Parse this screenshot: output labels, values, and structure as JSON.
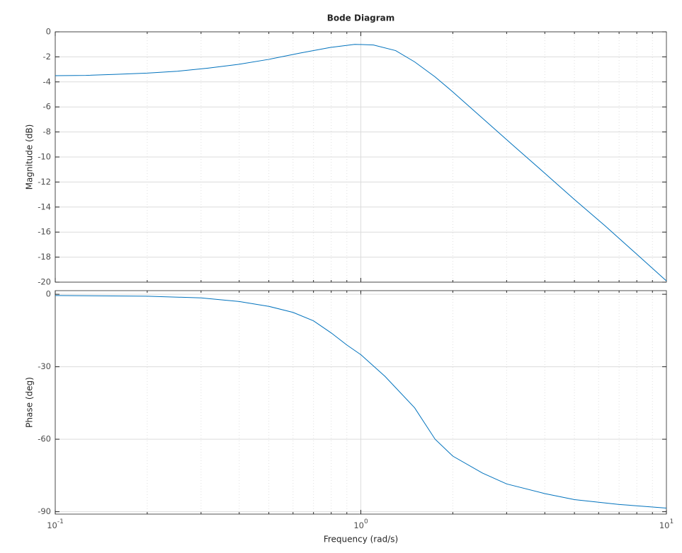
{
  "chart_data": [
    {
      "type": "line",
      "title": "Bode Diagram",
      "ylabel": "Magnitude (dB)",
      "log_x": true,
      "grid": true,
      "minor_grid": true,
      "xlim": [
        0.1,
        10
      ],
      "ylim": [
        -20,
        0
      ],
      "yticks": [
        0,
        -2,
        -4,
        -6,
        -8,
        -10,
        -12,
        -14,
        -16,
        -18,
        -20
      ],
      "x": [
        0.1,
        0.126,
        0.158,
        0.2,
        0.251,
        0.316,
        0.398,
        0.5,
        0.631,
        0.794,
        0.955,
        1.1,
        1.3,
        1.5,
        1.75,
        2.0,
        2.5,
        3.16,
        4,
        5,
        6.3,
        7.94,
        10
      ],
      "series": [
        {
          "color": "#0072bd",
          "values": [
            -3.5,
            -3.48,
            -3.4,
            -3.3,
            -3.15,
            -2.9,
            -2.6,
            -2.2,
            -1.7,
            -1.25,
            -1.0,
            -1.05,
            -1.5,
            -2.4,
            -3.6,
            -4.8,
            -6.9,
            -9.1,
            -11.3,
            -13.4,
            -15.5,
            -17.7,
            -19.9
          ]
        }
      ]
    },
    {
      "type": "line",
      "ylabel": "Phase (deg)",
      "xlabel": "Frequency  (rad/s)",
      "log_x": true,
      "grid": true,
      "minor_grid": true,
      "xlim": [
        0.1,
        10
      ],
      "ylim": [
        -91,
        1.5
      ],
      "yticks": [
        0,
        -30,
        -60,
        -90
      ],
      "xticks": [
        {
          "value": 0.1,
          "label": "10",
          "exponent": "-1"
        },
        {
          "value": 1,
          "label": "10",
          "exponent": "0"
        },
        {
          "value": 10,
          "label": "10",
          "exponent": "1"
        }
      ],
      "x": [
        0.1,
        0.2,
        0.3,
        0.4,
        0.5,
        0.6,
        0.7,
        0.8,
        0.9,
        1.0,
        1.2,
        1.5,
        1.75,
        2.0,
        2.5,
        3,
        4,
        5,
        7,
        10
      ],
      "series": [
        {
          "color": "#0072bd",
          "values": [
            -0.5,
            -0.8,
            -1.5,
            -3,
            -5,
            -7.5,
            -11,
            -16,
            -21,
            -25,
            -34,
            -47,
            -60,
            -67,
            -74,
            -78.5,
            -82.5,
            -85,
            -87,
            -88.5
          ]
        }
      ]
    }
  ]
}
